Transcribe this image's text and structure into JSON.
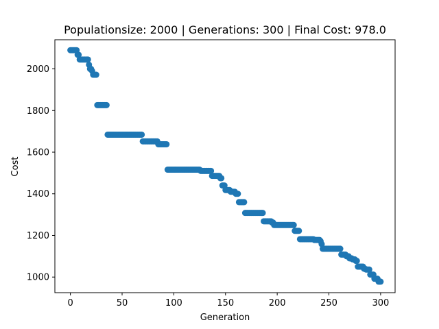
{
  "chart_data": {
    "type": "scatter",
    "title": "Populationsize: 2000 | Generations: 300 | Final Cost: 978.0",
    "xlabel": "Generation",
    "ylabel": "Cost",
    "xlim": [
      -15,
      314
    ],
    "ylim": [
      925,
      2140
    ],
    "xticks": [
      0,
      50,
      100,
      150,
      200,
      250,
      300
    ],
    "yticks": [
      1000,
      1200,
      1400,
      1600,
      1800,
      2000
    ],
    "marker_color": "#1f77b4",
    "steps": [
      [
        0,
        2090
      ],
      [
        7,
        2068
      ],
      [
        9,
        2045
      ],
      [
        18,
        2020
      ],
      [
        19,
        2000
      ],
      [
        21,
        1990
      ],
      [
        22,
        1972
      ],
      [
        26,
        1826
      ],
      [
        36,
        1684
      ],
      [
        70,
        1652
      ],
      [
        85,
        1638
      ],
      [
        94,
        1516
      ],
      [
        126,
        1510
      ],
      [
        137,
        1486
      ],
      [
        145,
        1475
      ],
      [
        147,
        1440
      ],
      [
        150,
        1418
      ],
      [
        155,
        1410
      ],
      [
        160,
        1400
      ],
      [
        163,
        1360
      ],
      [
        169,
        1308
      ],
      [
        187,
        1268
      ],
      [
        195,
        1262
      ],
      [
        197,
        1250
      ],
      [
        217,
        1222
      ],
      [
        222,
        1182
      ],
      [
        236,
        1178
      ],
      [
        242,
        1172
      ],
      [
        243,
        1158
      ],
      [
        244,
        1136
      ],
      [
        262,
        1108
      ],
      [
        267,
        1100
      ],
      [
        270,
        1090
      ],
      [
        273,
        1085
      ],
      [
        276,
        1078
      ],
      [
        278,
        1050
      ],
      [
        284,
        1040
      ],
      [
        286,
        1036
      ],
      [
        290,
        1012
      ],
      [
        294,
        992
      ],
      [
        298,
        978
      ],
      [
        300,
        978
      ]
    ]
  }
}
